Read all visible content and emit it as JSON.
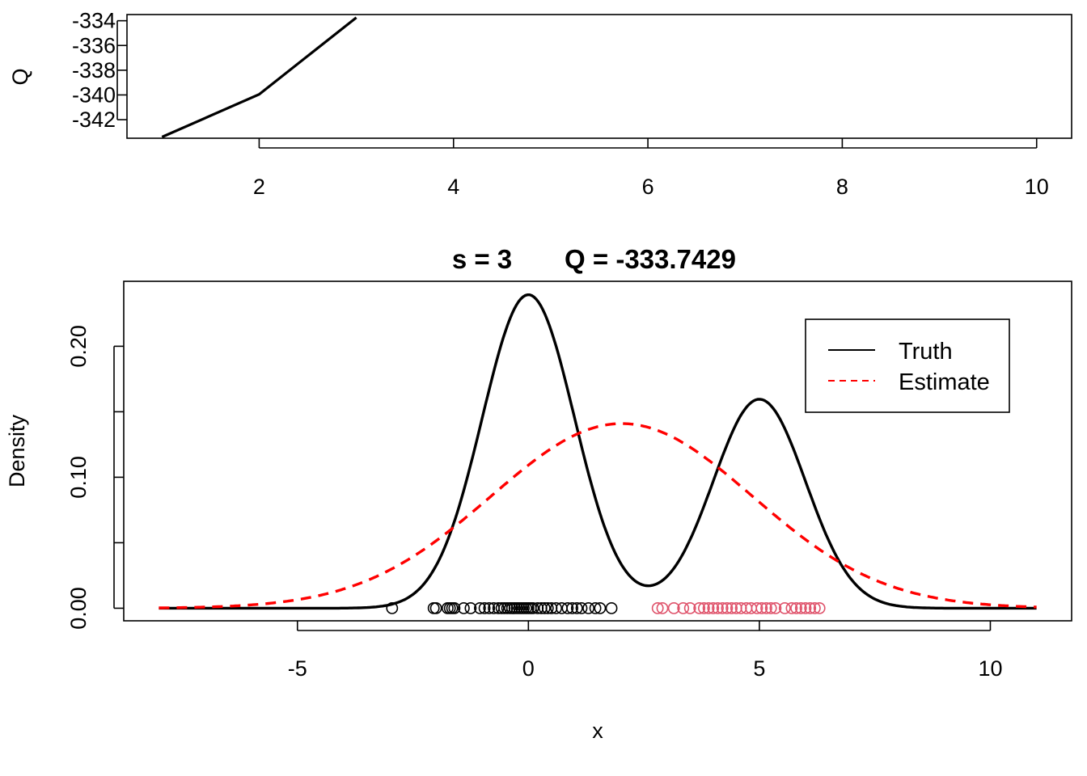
{
  "chart_data": [
    {
      "type": "line",
      "title": "",
      "xlabel": "",
      "ylabel": "Q",
      "xlim": [
        0.64,
        10.36
      ],
      "ylim": [
        -343.5,
        -333.5
      ],
      "x_ticks": [
        2,
        4,
        6,
        8,
        10
      ],
      "x_tick_labels": [
        "2",
        "4",
        "6",
        "8",
        "10"
      ],
      "y_ticks": [
        -342,
        -340,
        -338,
        -336,
        -334
      ],
      "y_tick_labels": [
        "-342",
        "-340",
        "-338",
        "-336",
        "-334"
      ],
      "series": [
        {
          "x": [
            1,
            2,
            3
          ],
          "y": [
            -343.4,
            -339.95,
            -333.7429
          ],
          "color": "#000000"
        }
      ]
    },
    {
      "type": "line",
      "title_parts": [
        "s = 3",
        "Q = -333.7429"
      ],
      "xlabel": "x",
      "ylabel": "Density",
      "xlim": [
        -8.76,
        11.76
      ],
      "ylim": [
        -0.0096,
        0.2496
      ],
      "x_ticks": [
        -5,
        0,
        5,
        10
      ],
      "x_tick_labels": [
        "-5",
        "0",
        "5",
        "10"
      ],
      "y_ticks": [
        0.0,
        0.05,
        0.1,
        0.15,
        0.2
      ],
      "y_tick_labels": [
        "0.00",
        "",
        "0.10",
        "",
        "0.20"
      ],
      "legend_position": "top-right",
      "series": [
        {
          "name": "Truth",
          "style": "solid",
          "color": "#000000",
          "components": [
            {
              "weight": 0.6,
              "mean": 0,
              "sd": 1
            },
            {
              "weight": 0.4,
              "mean": 5,
              "sd": 1
            }
          ],
          "x_range": [
            -8,
            11
          ]
        },
        {
          "name": "Estimate",
          "style": "dashed",
          "color": "#FF0000",
          "components": [
            {
              "weight": 1.0,
              "mean": 2.02,
              "sd": 2.83
            }
          ],
          "x_range": [
            -8,
            11
          ]
        }
      ],
      "points": {
        "y": 0,
        "groups": [
          {
            "color": "#000000",
            "x": [
              -2.95,
              -2.05,
              -2.0,
              -1.75,
              -1.7,
              -1.65,
              -1.6,
              -1.4,
              -1.25,
              -1.05,
              -0.95,
              -0.85,
              -0.75,
              -0.65,
              -0.58,
              -0.52,
              -0.46,
              -0.4,
              -0.35,
              -0.3,
              -0.25,
              -0.2,
              -0.15,
              -0.1,
              -0.05,
              0.0,
              0.05,
              0.1,
              0.2,
              0.28,
              0.35,
              0.42,
              0.5,
              0.6,
              0.72,
              0.85,
              0.95,
              1.05,
              1.15,
              1.3,
              1.45,
              1.55,
              1.8
            ]
          },
          {
            "color": "#DF536B",
            "x": [
              2.8,
              2.9,
              3.15,
              3.35,
              3.5,
              3.7,
              3.8,
              3.9,
              4.0,
              4.1,
              4.2,
              4.3,
              4.4,
              4.5,
              4.6,
              4.72,
              4.82,
              4.95,
              5.05,
              5.15,
              5.25,
              5.35,
              5.55,
              5.7,
              5.8,
              5.9,
              6.0,
              6.1,
              6.2,
              6.3
            ]
          }
        ]
      }
    }
  ]
}
